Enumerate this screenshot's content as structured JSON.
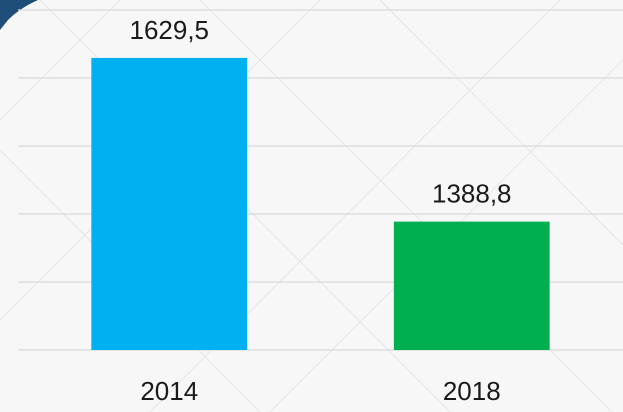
{
  "chart_data": {
    "type": "bar",
    "categories": [
      "2014",
      "2018"
    ],
    "values": [
      1629.5,
      1388.8
    ],
    "value_labels": [
      "1629,5",
      "1388,8"
    ],
    "colors": [
      "#00b0f0",
      "#00b050"
    ],
    "ylim": [
      1200,
      1700
    ],
    "yticks": [
      1200,
      1300,
      1400,
      1500,
      1600,
      1700
    ],
    "grid": true
  }
}
